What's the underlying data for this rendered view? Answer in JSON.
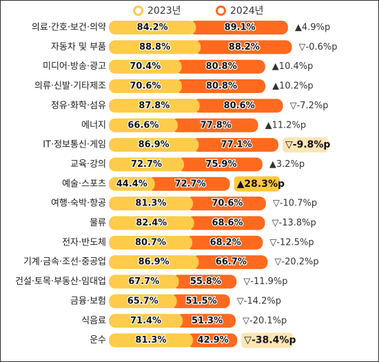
{
  "chart_data": {
    "type": "bar",
    "legend": [
      "2023년",
      "2024년"
    ],
    "colors": {
      "2023": "#FFCB4A",
      "2024": "#FF6A1F",
      "down_callout": "#FFE5B4",
      "up_callout": "#FFC83C"
    },
    "categories": [
      "의료·간호·보건·의약",
      "자동차 및 부품",
      "미디어·방송·광고",
      "의류·신발·기타제조",
      "정유·화학·섬유",
      "에너지",
      "IT·정보통신·게임",
      "교육·강의",
      "예술·스포츠",
      "여행·숙박·항공",
      "물류",
      "전자·반도체",
      "기계·금속·조선·중공업",
      "건설·토목·부동산·임대업",
      "금융·보험",
      "식음료",
      "운수"
    ],
    "series": [
      {
        "name": "2023년",
        "values": [
          84.2,
          88.8,
          70.4,
          70.6,
          87.8,
          66.6,
          86.9,
          72.7,
          44.4,
          81.3,
          82.4,
          80.7,
          86.9,
          67.7,
          65.7,
          71.4,
          81.3
        ],
        "labels": [
          "84.2%",
          "88.8%",
          "70.4%",
          "70.6%",
          "87.8%",
          "66.6%",
          "86.9%",
          "72.7%",
          "44.4%",
          "81.3%",
          "82.4%",
          "80.7%",
          "86.9%",
          "67.7%",
          "65.7%",
          "71.4%",
          "81.3%"
        ]
      },
      {
        "name": "2024년",
        "values": [
          89.1,
          88.2,
          80.8,
          80.8,
          80.6,
          77.8,
          77.1,
          75.9,
          72.7,
          70.6,
          68.6,
          68.2,
          66.7,
          55.8,
          51.5,
          51.3,
          42.9
        ],
        "labels": [
          "89.1%",
          "88.2%",
          "80.8%",
          "80.8%",
          "80.6%",
          "77.8%",
          "77.1%",
          "75.9%",
          "72.7%",
          "70.6%",
          "68.6%",
          "68.2%",
          "66.7%",
          "55.8%",
          "51.5%",
          "51.3%",
          "42.9%"
        ]
      }
    ],
    "changes": [
      "▲4.9%p",
      "▽-0.6%p",
      "▲10.4%p",
      "▲10.2%p",
      "▽-7.2%p",
      "▲11.2%p",
      "▽-9.8%p",
      "▲3.2%p",
      "▲28.3%p",
      "▽-10.7%p",
      "▽-13.8%p",
      "▽-12.5%p",
      "▽-20.2%p",
      "▽-11.9%p",
      "▽-14.2%p",
      "▽-20.1%p",
      "▽-38.4%p"
    ],
    "highlighted": [
      6,
      8,
      16
    ]
  }
}
